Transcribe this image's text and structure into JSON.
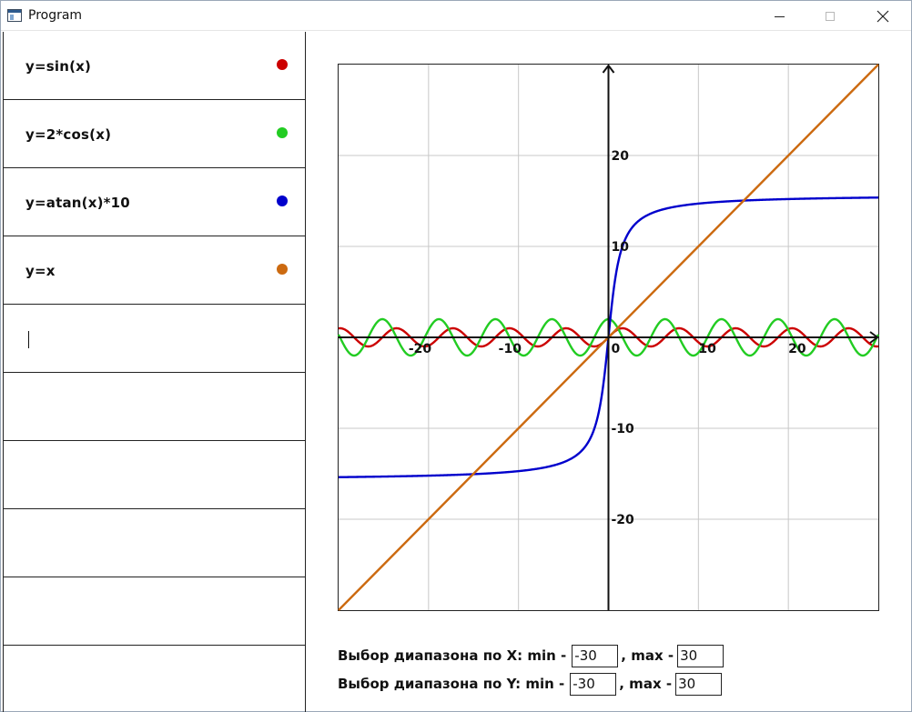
{
  "window": {
    "title": "Program",
    "icon": "app-window-icon",
    "controls": [
      "minimize-icon",
      "maximize-icon",
      "close-icon"
    ]
  },
  "functions": [
    {
      "label": "y=sin(x)",
      "color": "#cc0000"
    },
    {
      "label": "y=2*cos(x)",
      "color": "#22cc22"
    },
    {
      "label": "y=atan(x)*10",
      "color": "#0000cc"
    },
    {
      "label": "y=x",
      "color": "#cc6a10"
    },
    {
      "label": "",
      "color": ""
    },
    {
      "label": "",
      "color": ""
    },
    {
      "label": "",
      "color": ""
    },
    {
      "label": "",
      "color": ""
    },
    {
      "label": "",
      "color": ""
    },
    {
      "label": "",
      "color": ""
    }
  ],
  "range": {
    "x_label": "Выбор диапазона по X: min -",
    "y_label": "Выбор диапазона по Y: min -",
    "max_label": ", max -",
    "x_min": "-30",
    "x_max": "30",
    "y_min": "-30",
    "y_max": "30"
  },
  "chart_data": {
    "type": "line",
    "xlim": [
      -30,
      30
    ],
    "ylim": [
      -30,
      30
    ],
    "grid": true,
    "x_ticks": [
      -20,
      -10,
      0,
      10,
      20
    ],
    "y_ticks": [
      20,
      10,
      -10,
      -20
    ],
    "x_tick_labels": [
      "-20",
      "-10",
      "0",
      "10",
      "20"
    ],
    "y_tick_labels": [
      "20",
      "10",
      "-10",
      "-20"
    ],
    "series": [
      {
        "expr": "sin",
        "color": "#cc0000"
      },
      {
        "expr": "2cos",
        "color": "#22cc22"
      },
      {
        "expr": "atan10",
        "color": "#0000cc"
      },
      {
        "expr": "x",
        "color": "#cc6a10"
      }
    ]
  }
}
